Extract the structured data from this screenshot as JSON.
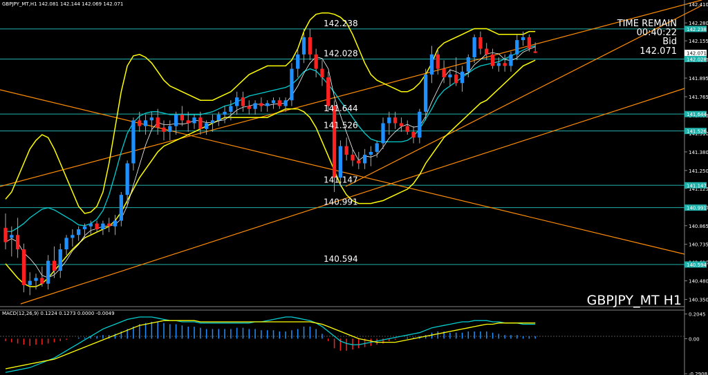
{
  "header": {
    "text": "GBPJPY_MT,H1  142.081 142.144 142.069 142.071"
  },
  "info": {
    "time_remain_label": "TIME REMAIN",
    "time_remain_value": "00:40:22",
    "bid_label": "Bid",
    "bid_value": "142.071"
  },
  "symbol_label": "GBPJPY_MT H1",
  "macd_label": "MACD(12,26,9) 0.1224 0.1273 0.0000 -0.0049",
  "colors": {
    "background": "#000000",
    "bull": "#1e90ff",
    "bear": "#ff2020",
    "bollinger": "#ffff00",
    "trendline": "#ff8c00",
    "hline": "#20b2aa",
    "ma_slow": "#00ced1",
    "ma_fast": "#ffffff",
    "macd_signal": "#ffff00",
    "macd_main": "#00ced1"
  },
  "chart_data": {
    "type": "candlestick",
    "ylim": [
      140.3,
      142.44
    ],
    "y_ticks": [
      "142.410",
      "142.280",
      "142.155",
      "142.025",
      "141.895",
      "141.765",
      "141.635",
      "141.510",
      "141.380",
      "141.250",
      "141.125",
      "140.995",
      "140.865",
      "140.735",
      "140.610",
      "140.480",
      "140.350"
    ],
    "price_markers": [
      {
        "label": "142.238",
        "value": 142.238,
        "color": "#20b2aa"
      },
      {
        "label": "142.071",
        "value": 142.071,
        "color": "#ffffff"
      },
      {
        "label": "142.028",
        "value": 142.028,
        "color": "#20b2aa"
      },
      {
        "label": "141.644",
        "value": 141.644,
        "color": "#20b2aa"
      },
      {
        "label": "141.526",
        "value": 141.526,
        "color": "#20b2aa"
      },
      {
        "label": "141.147",
        "value": 141.147,
        "color": "#20b2aa"
      },
      {
        "label": "140.991",
        "value": 140.991,
        "color": "#20b2aa"
      },
      {
        "label": "140.594",
        "value": 140.594,
        "color": "#20b2aa"
      }
    ],
    "horizontal_levels": [
      {
        "label": "142.238",
        "value": 142.238
      },
      {
        "label": "142.028",
        "value": 142.028
      },
      {
        "label": "141.644",
        "value": 141.644
      },
      {
        "label": "141.526",
        "value": 141.526
      },
      {
        "label": "141.147",
        "value": 141.147
      },
      {
        "label": "140.991",
        "value": 140.991
      },
      {
        "label": "140.594",
        "value": 140.594
      }
    ],
    "candles": [
      {
        "o": 140.85,
        "h": 140.95,
        "l": 140.7,
        "c": 140.75
      },
      {
        "o": 140.78,
        "h": 140.86,
        "l": 140.65,
        "c": 140.8
      },
      {
        "o": 140.8,
        "h": 140.92,
        "l": 140.64,
        "c": 140.7
      },
      {
        "o": 140.7,
        "h": 140.74,
        "l": 140.4,
        "c": 140.45
      },
      {
        "o": 140.45,
        "h": 140.54,
        "l": 140.38,
        "c": 140.48
      },
      {
        "o": 140.48,
        "h": 140.53,
        "l": 140.42,
        "c": 140.5
      },
      {
        "o": 140.5,
        "h": 140.58,
        "l": 140.44,
        "c": 140.46
      },
      {
        "o": 140.46,
        "h": 140.66,
        "l": 140.42,
        "c": 140.62
      },
      {
        "o": 140.62,
        "h": 140.72,
        "l": 140.5,
        "c": 140.55
      },
      {
        "o": 140.55,
        "h": 140.74,
        "l": 140.5,
        "c": 140.7
      },
      {
        "o": 140.7,
        "h": 140.8,
        "l": 140.66,
        "c": 140.78
      },
      {
        "o": 140.78,
        "h": 140.84,
        "l": 140.72,
        "c": 140.8
      },
      {
        "o": 140.8,
        "h": 140.86,
        "l": 140.76,
        "c": 140.84
      },
      {
        "o": 140.84,
        "h": 140.88,
        "l": 140.78,
        "c": 140.86
      },
      {
        "o": 140.86,
        "h": 140.9,
        "l": 140.8,
        "c": 140.88
      },
      {
        "o": 140.88,
        "h": 140.9,
        "l": 140.82,
        "c": 140.84
      },
      {
        "o": 140.84,
        "h": 140.9,
        "l": 140.8,
        "c": 140.88
      },
      {
        "o": 140.88,
        "h": 140.92,
        "l": 140.82,
        "c": 140.86
      },
      {
        "o": 140.86,
        "h": 140.94,
        "l": 140.8,
        "c": 140.9
      },
      {
        "o": 140.9,
        "h": 141.1,
        "l": 140.86,
        "c": 141.08
      },
      {
        "o": 141.08,
        "h": 141.32,
        "l": 141.0,
        "c": 141.3
      },
      {
        "o": 141.3,
        "h": 141.62,
        "l": 141.25,
        "c": 141.6
      },
      {
        "o": 141.6,
        "h": 141.66,
        "l": 141.52,
        "c": 141.56
      },
      {
        "o": 141.56,
        "h": 141.64,
        "l": 141.5,
        "c": 141.6
      },
      {
        "o": 141.6,
        "h": 141.66,
        "l": 141.54,
        "c": 141.62
      },
      {
        "o": 141.62,
        "h": 141.68,
        "l": 141.5,
        "c": 141.55
      },
      {
        "o": 141.55,
        "h": 141.6,
        "l": 141.46,
        "c": 141.52
      },
      {
        "o": 141.52,
        "h": 141.6,
        "l": 141.46,
        "c": 141.56
      },
      {
        "o": 141.56,
        "h": 141.66,
        "l": 141.5,
        "c": 141.64
      },
      {
        "o": 141.64,
        "h": 141.7,
        "l": 141.56,
        "c": 141.6
      },
      {
        "o": 141.6,
        "h": 141.66,
        "l": 141.52,
        "c": 141.58
      },
      {
        "o": 141.58,
        "h": 141.64,
        "l": 141.54,
        "c": 141.62
      },
      {
        "o": 141.62,
        "h": 141.66,
        "l": 141.5,
        "c": 141.54
      },
      {
        "o": 141.54,
        "h": 141.6,
        "l": 141.5,
        "c": 141.58
      },
      {
        "o": 141.58,
        "h": 141.64,
        "l": 141.52,
        "c": 141.6
      },
      {
        "o": 141.6,
        "h": 141.66,
        "l": 141.56,
        "c": 141.64
      },
      {
        "o": 141.64,
        "h": 141.7,
        "l": 141.58,
        "c": 141.66
      },
      {
        "o": 141.66,
        "h": 141.74,
        "l": 141.6,
        "c": 141.7
      },
      {
        "o": 141.7,
        "h": 141.8,
        "l": 141.64,
        "c": 141.76
      },
      {
        "o": 141.76,
        "h": 141.8,
        "l": 141.66,
        "c": 141.7
      },
      {
        "o": 141.7,
        "h": 141.74,
        "l": 141.64,
        "c": 141.68
      },
      {
        "o": 141.68,
        "h": 141.74,
        "l": 141.64,
        "c": 141.72
      },
      {
        "o": 141.72,
        "h": 141.76,
        "l": 141.66,
        "c": 141.7
      },
      {
        "o": 141.7,
        "h": 141.74,
        "l": 141.66,
        "c": 141.72
      },
      {
        "o": 141.72,
        "h": 141.76,
        "l": 141.68,
        "c": 141.74
      },
      {
        "o": 141.74,
        "h": 141.76,
        "l": 141.68,
        "c": 141.7
      },
      {
        "o": 141.7,
        "h": 141.76,
        "l": 141.66,
        "c": 141.74
      },
      {
        "o": 141.74,
        "h": 142.0,
        "l": 141.7,
        "c": 141.96
      },
      {
        "o": 141.96,
        "h": 142.1,
        "l": 141.9,
        "c": 142.06
      },
      {
        "o": 142.06,
        "h": 142.24,
        "l": 142.0,
        "c": 142.18
      },
      {
        "o": 142.18,
        "h": 142.24,
        "l": 142.02,
        "c": 142.06
      },
      {
        "o": 142.06,
        "h": 142.1,
        "l": 141.9,
        "c": 141.96
      },
      {
        "o": 141.96,
        "h": 142.02,
        "l": 141.84,
        "c": 141.9
      },
      {
        "o": 141.9,
        "h": 141.94,
        "l": 141.66,
        "c": 141.7
      },
      {
        "o": 141.7,
        "h": 141.74,
        "l": 141.1,
        "c": 141.2
      },
      {
        "o": 141.2,
        "h": 141.46,
        "l": 141.14,
        "c": 141.42
      },
      {
        "o": 141.42,
        "h": 141.48,
        "l": 141.32,
        "c": 141.36
      },
      {
        "o": 141.36,
        "h": 141.4,
        "l": 141.28,
        "c": 141.32
      },
      {
        "o": 141.32,
        "h": 141.38,
        "l": 141.26,
        "c": 141.3
      },
      {
        "o": 141.3,
        "h": 141.4,
        "l": 141.26,
        "c": 141.36
      },
      {
        "o": 141.36,
        "h": 141.42,
        "l": 141.28,
        "c": 141.38
      },
      {
        "o": 141.38,
        "h": 141.46,
        "l": 141.34,
        "c": 141.44
      },
      {
        "o": 141.44,
        "h": 141.62,
        "l": 141.4,
        "c": 141.58
      },
      {
        "o": 141.58,
        "h": 141.66,
        "l": 141.5,
        "c": 141.62
      },
      {
        "o": 141.62,
        "h": 141.66,
        "l": 141.54,
        "c": 141.58
      },
      {
        "o": 141.58,
        "h": 141.62,
        "l": 141.52,
        "c": 141.56
      },
      {
        "o": 141.56,
        "h": 141.6,
        "l": 141.5,
        "c": 141.52
      },
      {
        "o": 141.52,
        "h": 141.56,
        "l": 141.44,
        "c": 141.48
      },
      {
        "o": 141.48,
        "h": 141.68,
        "l": 141.44,
        "c": 141.66
      },
      {
        "o": 141.66,
        "h": 141.96,
        "l": 141.6,
        "c": 141.92
      },
      {
        "o": 141.92,
        "h": 142.12,
        "l": 141.86,
        "c": 142.06
      },
      {
        "o": 142.06,
        "h": 142.1,
        "l": 141.92,
        "c": 141.96
      },
      {
        "o": 141.96,
        "h": 142.02,
        "l": 141.86,
        "c": 141.9
      },
      {
        "o": 141.9,
        "h": 141.96,
        "l": 141.84,
        "c": 141.92
      },
      {
        "o": 141.92,
        "h": 142.04,
        "l": 141.84,
        "c": 141.86
      },
      {
        "o": 141.86,
        "h": 141.98,
        "l": 141.8,
        "c": 141.94
      },
      {
        "o": 141.94,
        "h": 142.06,
        "l": 141.9,
        "c": 142.04
      },
      {
        "o": 142.04,
        "h": 142.2,
        "l": 142.0,
        "c": 142.18
      },
      {
        "o": 142.18,
        "h": 142.22,
        "l": 142.06,
        "c": 142.1
      },
      {
        "o": 142.1,
        "h": 142.14,
        "l": 142.02,
        "c": 142.06
      },
      {
        "o": 142.06,
        "h": 142.1,
        "l": 141.96,
        "c": 141.98
      },
      {
        "o": 141.98,
        "h": 142.04,
        "l": 141.94,
        "c": 142.0
      },
      {
        "o": 142.0,
        "h": 142.06,
        "l": 141.94,
        "c": 141.98
      },
      {
        "o": 141.98,
        "h": 142.08,
        "l": 141.94,
        "c": 142.06
      },
      {
        "o": 142.06,
        "h": 142.2,
        "l": 142.02,
        "c": 142.16
      },
      {
        "o": 142.16,
        "h": 142.22,
        "l": 142.12,
        "c": 142.18
      },
      {
        "o": 142.18,
        "h": 142.2,
        "l": 142.08,
        "c": 142.1
      },
      {
        "o": 142.081,
        "h": 142.144,
        "l": 142.069,
        "c": 142.071
      }
    ],
    "bollinger": {
      "upper": [
        141.05,
        141.1,
        141.2,
        141.3,
        141.4,
        141.46,
        141.5,
        141.48,
        141.4,
        141.3,
        141.2,
        141.1,
        141.0,
        140.95,
        140.96,
        141.0,
        141.1,
        141.3,
        141.55,
        141.8,
        141.98,
        142.05,
        142.06,
        142.04,
        142.0,
        141.94,
        141.88,
        141.84,
        141.82,
        141.8,
        141.78,
        141.76,
        141.74,
        141.74,
        141.74,
        141.76,
        141.78,
        141.8,
        141.84,
        141.88,
        141.92,
        141.94,
        141.96,
        141.98,
        141.98,
        141.98,
        141.98,
        142.02,
        142.1,
        142.22,
        142.3,
        142.34,
        142.35,
        142.35,
        142.34,
        142.32,
        142.28,
        142.2,
        142.1,
        142.0,
        141.92,
        141.88,
        141.86,
        141.84,
        141.82,
        141.8,
        141.8,
        141.82,
        141.86,
        141.92,
        142.0,
        142.1,
        142.14,
        142.16,
        142.18,
        142.2,
        142.22,
        142.24,
        142.24,
        142.24,
        142.22,
        142.2,
        142.2,
        142.2,
        142.2,
        142.2,
        142.22,
        142.22
      ],
      "lower": [
        140.6,
        140.55,
        140.5,
        140.46,
        140.44,
        140.44,
        140.46,
        140.5,
        140.55,
        140.6,
        140.65,
        140.7,
        140.74,
        140.78,
        140.8,
        140.82,
        140.84,
        140.86,
        140.9,
        140.96,
        141.04,
        141.12,
        141.2,
        141.26,
        141.32,
        141.38,
        141.42,
        141.44,
        141.46,
        141.48,
        141.5,
        141.52,
        141.54,
        141.56,
        141.58,
        141.6,
        141.62,
        141.62,
        141.62,
        141.62,
        141.62,
        141.62,
        141.62,
        141.62,
        141.64,
        141.66,
        141.68,
        141.68,
        141.68,
        141.66,
        141.62,
        141.55,
        141.45,
        141.35,
        141.25,
        141.15,
        141.08,
        141.04,
        141.02,
        141.02,
        141.02,
        141.03,
        141.04,
        141.06,
        141.08,
        141.1,
        141.12,
        141.16,
        141.22,
        141.3,
        141.36,
        141.42,
        141.48,
        141.52,
        141.56,
        141.6,
        141.64,
        141.68,
        141.72,
        141.74,
        141.78,
        141.82,
        141.86,
        141.9,
        141.94,
        141.98,
        142.0,
        142.02
      ]
    },
    "macd": {
      "ylim": [
        -0.29,
        0.22
      ],
      "ticks": [
        "0.2045",
        "0.00",
        "-0.2908"
      ],
      "histogram": [
        -0.02,
        -0.03,
        -0.04,
        -0.05,
        -0.06,
        -0.05,
        -0.05,
        -0.04,
        -0.03,
        -0.02,
        -0.01,
        0.0,
        0.01,
        0.01,
        0.02,
        0.02,
        0.03,
        0.03,
        0.04,
        0.06,
        0.08,
        0.1,
        0.12,
        0.13,
        0.14,
        0.14,
        0.13,
        0.12,
        0.12,
        0.11,
        0.1,
        0.1,
        0.09,
        0.08,
        0.08,
        0.08,
        0.08,
        0.08,
        0.09,
        0.09,
        0.08,
        0.08,
        0.07,
        0.07,
        0.07,
        0.06,
        0.06,
        0.07,
        0.08,
        0.1,
        0.1,
        0.08,
        0.04,
        -0.02,
        -0.08,
        -0.1,
        -0.1,
        -0.09,
        -0.08,
        -0.07,
        -0.06,
        -0.05,
        -0.04,
        -0.02,
        -0.01,
        0.0,
        0.01,
        0.01,
        0.02,
        0.03,
        0.05,
        0.06,
        0.06,
        0.05,
        0.05,
        0.05,
        0.06,
        0.06,
        0.06,
        0.06,
        0.05,
        0.04,
        0.03,
        0.03,
        0.03,
        0.02,
        0.02,
        0.02
      ],
      "signal": [
        -0.25,
        -0.24,
        -0.23,
        -0.22,
        -0.21,
        -0.2,
        -0.19,
        -0.18,
        -0.17,
        -0.15,
        -0.13,
        -0.11,
        -0.09,
        -0.07,
        -0.05,
        -0.03,
        -0.01,
        0.01,
        0.03,
        0.05,
        0.07,
        0.09,
        0.11,
        0.12,
        0.13,
        0.14,
        0.15,
        0.15,
        0.15,
        0.15,
        0.15,
        0.15,
        0.14,
        0.14,
        0.14,
        0.14,
        0.14,
        0.14,
        0.14,
        0.14,
        0.14,
        0.14,
        0.14,
        0.14,
        0.14,
        0.14,
        0.14,
        0.14,
        0.14,
        0.14,
        0.14,
        0.13,
        0.12,
        0.1,
        0.08,
        0.06,
        0.04,
        0.02,
        0.0,
        -0.01,
        -0.02,
        -0.03,
        -0.03,
        -0.03,
        -0.03,
        -0.02,
        -0.01,
        0.0,
        0.01,
        0.02,
        0.03,
        0.04,
        0.05,
        0.06,
        0.07,
        0.08,
        0.09,
        0.1,
        0.11,
        0.12,
        0.12,
        0.13,
        0.13,
        0.13,
        0.13,
        0.13,
        0.13,
        0.13
      ],
      "main": [
        -0.28,
        -0.27,
        -0.26,
        -0.25,
        -0.24,
        -0.22,
        -0.2,
        -0.18,
        -0.16,
        -0.13,
        -0.1,
        -0.07,
        -0.04,
        -0.01,
        0.02,
        0.05,
        0.08,
        0.1,
        0.12,
        0.14,
        0.16,
        0.17,
        0.18,
        0.18,
        0.18,
        0.17,
        0.16,
        0.15,
        0.15,
        0.14,
        0.14,
        0.14,
        0.13,
        0.13,
        0.13,
        0.13,
        0.13,
        0.13,
        0.13,
        0.13,
        0.13,
        0.14,
        0.14,
        0.15,
        0.16,
        0.17,
        0.18,
        0.18,
        0.17,
        0.16,
        0.15,
        0.13,
        0.1,
        0.06,
        0.02,
        -0.02,
        -0.04,
        -0.05,
        -0.05,
        -0.04,
        -0.03,
        -0.02,
        -0.01,
        0.0,
        0.01,
        0.02,
        0.03,
        0.04,
        0.05,
        0.07,
        0.09,
        0.1,
        0.11,
        0.12,
        0.13,
        0.14,
        0.14,
        0.15,
        0.15,
        0.15,
        0.14,
        0.14,
        0.13,
        0.13,
        0.13,
        0.12,
        0.12,
        0.12
      ]
    }
  }
}
